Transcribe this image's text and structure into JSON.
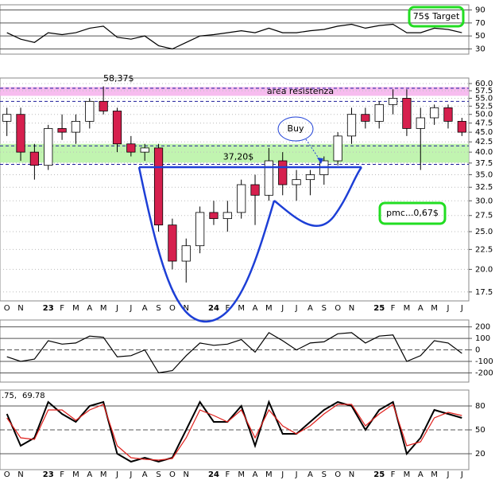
{
  "chart_data": [
    {
      "type": "line",
      "ylim": [
        22,
        98
      ],
      "yticks": [
        30,
        50,
        70,
        90
      ],
      "annotation": "75$ Target",
      "series": [
        {
          "name": "RSI",
          "color": "#000000",
          "values": [
            55,
            45,
            40,
            55,
            52,
            55,
            62,
            65,
            48,
            45,
            50,
            35,
            30,
            40,
            50,
            52,
            55,
            58,
            55,
            62,
            55,
            55,
            58,
            60,
            65,
            68,
            62,
            66,
            68,
            55,
            55,
            62,
            60,
            55
          ]
        }
      ]
    },
    {
      "type": "candlestick",
      "log_scale": true,
      "grid": true,
      "ylim": [
        16.6,
        62
      ],
      "yticks": [
        17.5,
        {
          "value": 20,
          "label": "20.0"
        },
        22.5,
        {
          "value": 25,
          "label": "25.0"
        },
        27.5,
        {
          "value": 30,
          "label": "30.0"
        },
        32.5,
        {
          "value": 35,
          "label": "35.0"
        },
        37.5,
        {
          "value": 40,
          "label": "40.0"
        },
        42.5,
        {
          "value": 45,
          "label": "45.0"
        },
        47.5,
        {
          "value": 50,
          "label": "50.0"
        },
        52.5,
        {
          "value": 55,
          "label": "55.0"
        },
        57.5,
        {
          "value": 60,
          "label": "60.0"
        }
      ],
      "categories": [
        "O",
        "N",
        null,
        "23",
        "F",
        "M",
        "A",
        "M",
        "J",
        "J",
        "A",
        "S",
        "O",
        "N",
        null,
        "24",
        "F",
        "M",
        "A",
        "M",
        "J",
        "J",
        "A",
        "S",
        "O",
        "N",
        null,
        "25",
        "F",
        "M",
        "A",
        "M",
        "J",
        "J"
      ],
      "open": [
        48,
        50,
        40,
        37,
        46,
        45,
        48,
        54,
        51,
        42,
        40,
        41,
        26,
        21,
        23,
        28,
        27,
        28,
        33,
        31,
        38,
        33,
        34,
        35,
        38,
        44,
        50,
        48,
        53,
        55,
        46,
        49,
        52,
        48
      ],
      "high": [
        52,
        52,
        42,
        47,
        50,
        50,
        55,
        59,
        52,
        44,
        42,
        42,
        27,
        24,
        29,
        30,
        30,
        34,
        35,
        41,
        40,
        36,
        36,
        39,
        45,
        52,
        52,
        54,
        58,
        58,
        52,
        53,
        53,
        49
      ],
      "low": [
        44,
        38,
        34,
        36,
        43,
        42,
        46,
        50,
        40,
        39,
        38,
        25,
        20,
        18.5,
        22,
        26,
        25,
        27,
        26,
        30,
        31,
        30,
        31,
        33,
        37,
        42,
        46,
        46,
        50,
        44,
        36,
        47,
        46,
        44
      ],
      "close": [
        50,
        40,
        37,
        46,
        45,
        48,
        54,
        51,
        42,
        40,
        41,
        26,
        21,
        23,
        28,
        27,
        28,
        33,
        31,
        38,
        33,
        34,
        35,
        38,
        44,
        50,
        48,
        53,
        55,
        46,
        49,
        52,
        48,
        45
      ],
      "up_color": "#ffffff",
      "down_color": "#d6204e",
      "bands": [
        {
          "label": "area resistenza",
          "range": [
            55.8,
            58.8
          ],
          "color": "#f6b0ec"
        },
        {
          "range": [
            37.6,
            42
          ],
          "color": "#b6f2a2"
        }
      ],
      "levels": [
        {
          "value": 58.37,
          "label": "58,37$"
        },
        {
          "value": 37.2,
          "label": "37,20$"
        }
      ],
      "dashed_levels": [
        54,
        41.5
      ],
      "annotations": [
        "Buy",
        "pmc...0,67$"
      ]
    },
    {
      "type": "line",
      "ylim": [
        -280,
        260
      ],
      "yticks": [
        -200,
        -100,
        0,
        100,
        200
      ],
      "series": [
        {
          "name": "CCI",
          "color": "#000000",
          "values": [
            -60,
            -100,
            -80,
            80,
            50,
            60,
            120,
            110,
            -60,
            -50,
            0,
            -200,
            -180,
            -50,
            60,
            40,
            50,
            90,
            -20,
            150,
            80,
            0,
            60,
            70,
            140,
            150,
            60,
            120,
            130,
            -100,
            -50,
            80,
            60,
            -30
          ]
        }
      ]
    },
    {
      "type": "line",
      "ylim": [
        0,
        100
      ],
      "yticks": [
        20,
        50,
        80
      ],
      "categories": [
        "O",
        "N",
        null,
        "23",
        "F",
        "M",
        "A",
        "M",
        "J",
        "J",
        "A",
        "S",
        "O",
        "N",
        null,
        "24",
        "F",
        "M",
        "A",
        "M",
        "J",
        "J",
        "A",
        "S",
        "O",
        "N",
        null,
        "25",
        "F",
        "M",
        "A",
        "M",
        "J",
        "J"
      ],
      "labels": [
        ".75,",
        "69.78"
      ],
      "series": [
        {
          "name": "%K",
          "color": "#000000",
          "values": [
            70,
            30,
            40,
            85,
            70,
            60,
            80,
            85,
            20,
            10,
            15,
            10,
            15,
            50,
            85,
            60,
            60,
            80,
            30,
            85,
            45,
            45,
            60,
            75,
            85,
            80,
            50,
            75,
            85,
            20,
            40,
            75,
            70,
            65
          ]
        },
        {
          "name": "%D",
          "color": "#e0201c",
          "values": [
            65,
            40,
            38,
            75,
            75,
            62,
            75,
            82,
            30,
            15,
            13,
            12,
            14,
            40,
            75,
            68,
            60,
            75,
            40,
            75,
            55,
            45,
            55,
            70,
            82,
            82,
            55,
            70,
            82,
            30,
            35,
            65,
            72,
            68
          ]
        }
      ]
    }
  ]
}
